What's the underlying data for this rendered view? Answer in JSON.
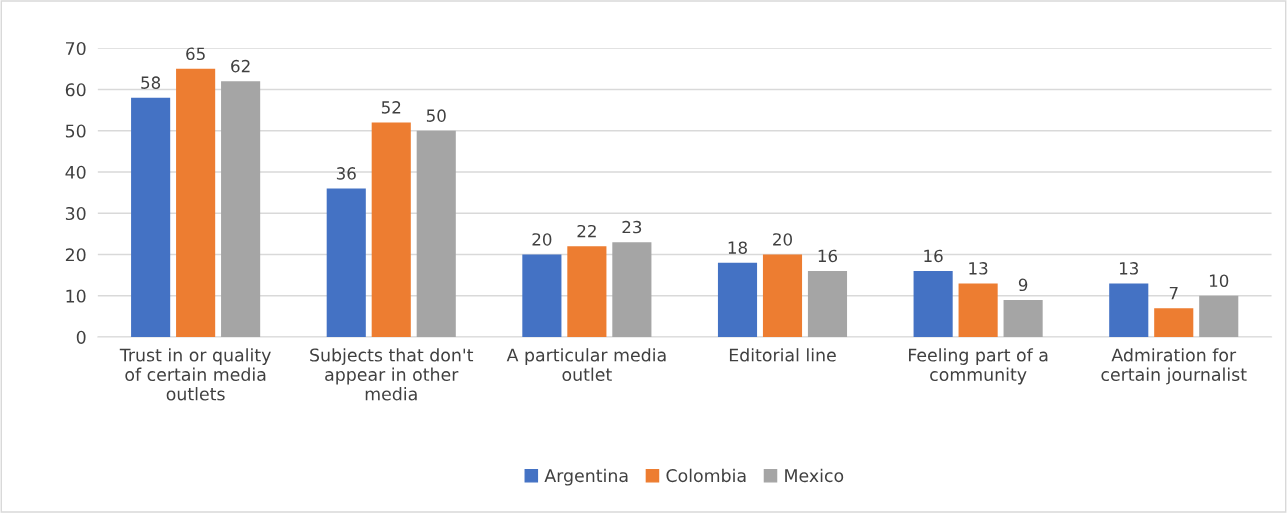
{
  "chart_data": {
    "type": "bar",
    "categories": [
      "Trust in or quality\nof certain media\noutlets",
      "Subjects that don't\nappear in other\nmedia",
      "A particular media\noutlet",
      "Editorial line",
      "Feeling part of a\ncommunity",
      "Admiration for\ncertain journalist"
    ],
    "series": [
      {
        "name": "Argentina",
        "color": "#4472c4",
        "values": [
          58,
          36,
          20,
          18,
          16,
          13
        ]
      },
      {
        "name": "Colombia",
        "color": "#ed7d31",
        "values": [
          65,
          52,
          22,
          20,
          13,
          7
        ]
      },
      {
        "name": "Mexico",
        "color": "#a5a5a5",
        "values": [
          62,
          50,
          23,
          16,
          9,
          10
        ]
      }
    ],
    "ylim": [
      0,
      70
    ],
    "yticks": [
      0,
      10,
      20,
      30,
      40,
      50,
      60,
      70
    ],
    "grid": "y",
    "legend": "bottom",
    "data_labels": true
  }
}
